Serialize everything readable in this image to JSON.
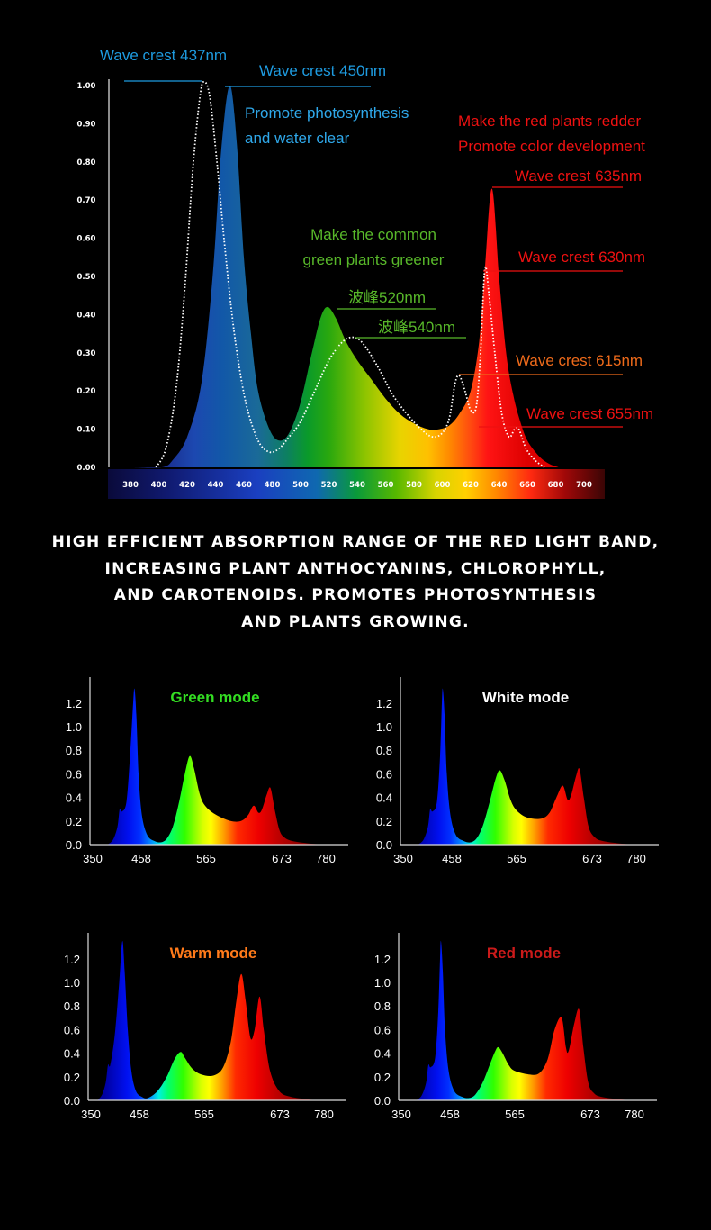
{
  "caption": [
    "HIGH EFFICIENT ABSORPTION RANGE OF THE RED LIGHT BAND,",
    "INCREASING PLANT ANTHOCYANINS, CHLOROPHYLL,",
    "AND CAROTENOIDS. PROMOTES PHOTOSYNTHESIS",
    "AND PLANTS GROWING."
  ],
  "chart_data": [
    {
      "type": "area",
      "xlabel": "",
      "ylabel": "",
      "x_ticks": [
        380,
        400,
        420,
        440,
        460,
        480,
        500,
        520,
        540,
        560,
        580,
        600,
        620,
        640,
        660,
        680,
        700
      ],
      "y_ticks": [
        "0.00",
        "0.10",
        "0.20",
        "0.30",
        "0.40",
        "0.50",
        "0.60",
        "0.70",
        "0.80",
        "0.90",
        "1.00"
      ],
      "xlim": [
        380,
        700
      ],
      "ylim": [
        0,
        1.0
      ],
      "grid": false,
      "series": [
        {
          "style": "filled-spectrum",
          "points": [
            [
              380,
              0
            ],
            [
              402,
              0
            ],
            [
              410,
              0.02
            ],
            [
              420,
              0.08
            ],
            [
              430,
              0.22
            ],
            [
              438,
              0.5
            ],
            [
              444,
              0.83
            ],
            [
              450,
              1.0
            ],
            [
              455,
              0.85
            ],
            [
              460,
              0.55
            ],
            [
              465,
              0.35
            ],
            [
              470,
              0.2
            ],
            [
              478,
              0.1
            ],
            [
              485,
              0.07
            ],
            [
              492,
              0.09
            ],
            [
              500,
              0.17
            ],
            [
              508,
              0.3
            ],
            [
              514,
              0.39
            ],
            [
              519,
              0.42
            ],
            [
              525,
              0.39
            ],
            [
              532,
              0.33
            ],
            [
              540,
              0.28
            ],
            [
              550,
              0.23
            ],
            [
              560,
              0.18
            ],
            [
              570,
              0.14
            ],
            [
              580,
              0.115
            ],
            [
              590,
              0.1
            ],
            [
              598,
              0.1
            ],
            [
              605,
              0.11
            ],
            [
              612,
              0.14
            ],
            [
              620,
              0.2
            ],
            [
              626,
              0.33
            ],
            [
              630,
              0.52
            ],
            [
              635,
              0.73
            ],
            [
              640,
              0.5
            ],
            [
              645,
              0.3
            ],
            [
              650,
              0.19
            ],
            [
              655,
              0.12
            ],
            [
              660,
              0.07
            ],
            [
              668,
              0.03
            ],
            [
              675,
              0.01
            ],
            [
              682,
              0
            ]
          ]
        },
        {
          "style": "dotted-white",
          "points": [
            [
              398,
              0
            ],
            [
              405,
              0.05
            ],
            [
              412,
              0.2
            ],
            [
              418,
              0.45
            ],
            [
              424,
              0.78
            ],
            [
              429,
              0.97
            ],
            [
              432,
              1.01
            ],
            [
              436,
              0.97
            ],
            [
              441,
              0.8
            ],
            [
              446,
              0.6
            ],
            [
              451,
              0.42
            ],
            [
              456,
              0.28
            ],
            [
              462,
              0.16
            ],
            [
              470,
              0.07
            ],
            [
              478,
              0.04
            ],
            [
              485,
              0.05
            ],
            [
              492,
              0.08
            ],
            [
              500,
              0.12
            ],
            [
              510,
              0.2
            ],
            [
              520,
              0.28
            ],
            [
              530,
              0.33
            ],
            [
              538,
              0.34
            ],
            [
              545,
              0.32
            ],
            [
              555,
              0.26
            ],
            [
              565,
              0.19
            ],
            [
              575,
              0.14
            ],
            [
              585,
              0.1
            ],
            [
              593,
              0.08
            ],
            [
              600,
              0.09
            ],
            [
              605,
              0.13
            ],
            [
              609,
              0.22
            ],
            [
              612,
              0.24
            ],
            [
              616,
              0.2
            ],
            [
              620,
              0.15
            ],
            [
              624,
              0.16
            ],
            [
              627,
              0.3
            ],
            [
              630,
              0.52
            ],
            [
              633,
              0.45
            ],
            [
              637,
              0.3
            ],
            [
              642,
              0.14
            ],
            [
              647,
              0.08
            ],
            [
              651,
              0.1
            ],
            [
              654,
              0.1
            ],
            [
              659,
              0.05
            ],
            [
              665,
              0.02
            ],
            [
              672,
              0
            ]
          ]
        }
      ],
      "annotations": [
        {
          "text": "Wave crest 437nm",
          "color": "#1e9be0"
        },
        {
          "text": "Wave crest 450nm",
          "color": "#1e9be0"
        },
        {
          "text": "Promote photosynthesis",
          "color": "#2fa8ea"
        },
        {
          "text": "and water clear",
          "color": "#2fa8ea"
        },
        {
          "text": "Make the red plants redder",
          "color": "#ee1111"
        },
        {
          "text": "Promote color development",
          "color": "#ee1111"
        },
        {
          "text": "Wave crest 635nm",
          "color": "#ee1111"
        },
        {
          "text": "Make the common",
          "color": "#58b82a"
        },
        {
          "text": "green plants greener",
          "color": "#58b82a"
        },
        {
          "text": "波峰520nm",
          "color": "#58b82a"
        },
        {
          "text": "波峰540nm",
          "color": "#58b82a"
        },
        {
          "text": "Wave crest 630nm",
          "color": "#ee1111"
        },
        {
          "text": "Wave crest 615nm",
          "color": "#ee6a1a"
        },
        {
          "text": "Wave crest 655nm",
          "color": "#ee1111"
        }
      ]
    },
    {
      "type": "area",
      "title": "Green mode",
      "title_color": "#33dd22",
      "x_ticks": [
        350,
        458,
        565,
        673,
        780
      ],
      "y_ticks": [
        "0.0",
        "0.2",
        "0.4",
        "0.6",
        "0.8",
        "1.0",
        "1.2"
      ],
      "ylim": [
        0,
        1.2
      ],
      "points": [
        [
          383,
          0
        ],
        [
          395,
          0.04
        ],
        [
          405,
          0.15
        ],
        [
          410,
          0.3
        ],
        [
          415,
          0.28
        ],
        [
          425,
          0.36
        ],
        [
          433,
          0.75
        ],
        [
          440,
          1.2
        ],
        [
          443,
          1.32
        ],
        [
          447,
          1.1
        ],
        [
          452,
          0.6
        ],
        [
          459,
          0.25
        ],
        [
          468,
          0.08
        ],
        [
          480,
          0.03
        ],
        [
          491,
          0.02
        ],
        [
          500,
          0.05
        ],
        [
          510,
          0.15
        ],
        [
          520,
          0.35
        ],
        [
          530,
          0.6
        ],
        [
          538,
          0.75
        ],
        [
          545,
          0.65
        ],
        [
          555,
          0.42
        ],
        [
          565,
          0.32
        ],
        [
          580,
          0.25
        ],
        [
          600,
          0.2
        ],
        [
          615,
          0.2
        ],
        [
          625,
          0.25
        ],
        [
          633,
          0.33
        ],
        [
          640,
          0.27
        ],
        [
          645,
          0.3
        ],
        [
          652,
          0.43
        ],
        [
          657,
          0.48
        ],
        [
          663,
          0.3
        ],
        [
          670,
          0.12
        ],
        [
          680,
          0.06
        ],
        [
          700,
          0.03
        ],
        [
          740,
          0.01
        ],
        [
          775,
          0
        ]
      ]
    },
    {
      "type": "area",
      "title": "White mode",
      "title_color": "#ffffff",
      "x_ticks": [
        350,
        458,
        565,
        673,
        780
      ],
      "y_ticks": [
        "0.0",
        "0.2",
        "0.4",
        "0.6",
        "0.8",
        "1.0",
        "1.2"
      ],
      "ylim": [
        0,
        1.2
      ],
      "points": [
        [
          383,
          0
        ],
        [
          395,
          0.04
        ],
        [
          405,
          0.15
        ],
        [
          410,
          0.3
        ],
        [
          415,
          0.28
        ],
        [
          425,
          0.36
        ],
        [
          432,
          0.75
        ],
        [
          436,
          1.2
        ],
        [
          438,
          1.32
        ],
        [
          442,
          1.1
        ],
        [
          447,
          0.6
        ],
        [
          455,
          0.25
        ],
        [
          465,
          0.08
        ],
        [
          478,
          0.03
        ],
        [
          490,
          0.02
        ],
        [
          500,
          0.06
        ],
        [
          510,
          0.17
        ],
        [
          520,
          0.35
        ],
        [
          530,
          0.55
        ],
        [
          537,
          0.63
        ],
        [
          545,
          0.55
        ],
        [
          555,
          0.38
        ],
        [
          565,
          0.29
        ],
        [
          580,
          0.23
        ],
        [
          600,
          0.22
        ],
        [
          612,
          0.27
        ],
        [
          622,
          0.4
        ],
        [
          631,
          0.5
        ],
        [
          638,
          0.38
        ],
        [
          643,
          0.42
        ],
        [
          650,
          0.58
        ],
        [
          655,
          0.64
        ],
        [
          661,
          0.4
        ],
        [
          668,
          0.15
        ],
        [
          680,
          0.06
        ],
        [
          700,
          0.03
        ],
        [
          740,
          0.01
        ],
        [
          775,
          0
        ]
      ]
    },
    {
      "type": "area",
      "title": "Warm mode",
      "title_color": "#ff7a1a",
      "x_ticks": [
        350,
        458,
        565,
        673,
        780
      ],
      "y_ticks": [
        "0.0",
        "0.2",
        "0.4",
        "0.6",
        "0.8",
        "1.0",
        "1.2"
      ],
      "ylim": [
        0,
        1.2
      ],
      "points": [
        [
          365,
          0
        ],
        [
          375,
          0.05
        ],
        [
          383,
          0.15
        ],
        [
          388,
          0.3
        ],
        [
          393,
          0.3
        ],
        [
          403,
          0.55
        ],
        [
          413,
          1.0
        ],
        [
          420,
          1.35
        ],
        [
          425,
          1.1
        ],
        [
          432,
          0.6
        ],
        [
          440,
          0.25
        ],
        [
          450,
          0.08
        ],
        [
          462,
          0.03
        ],
        [
          472,
          0.02
        ],
        [
          488,
          0.08
        ],
        [
          503,
          0.2
        ],
        [
          516,
          0.35
        ],
        [
          526,
          0.41
        ],
        [
          533,
          0.36
        ],
        [
          545,
          0.27
        ],
        [
          560,
          0.22
        ],
        [
          578,
          0.21
        ],
        [
          592,
          0.28
        ],
        [
          603,
          0.5
        ],
        [
          611,
          0.85
        ],
        [
          618,
          1.07
        ],
        [
          624,
          0.85
        ],
        [
          631,
          0.53
        ],
        [
          637,
          0.6
        ],
        [
          644,
          0.88
        ],
        [
          650,
          0.6
        ],
        [
          659,
          0.25
        ],
        [
          672,
          0.08
        ],
        [
          700,
          0.03
        ],
        [
          760,
          0
        ]
      ]
    },
    {
      "type": "area",
      "title": "Red mode",
      "title_color": "#cc1a1a",
      "x_ticks": [
        350,
        458,
        565,
        673,
        780
      ],
      "y_ticks": [
        "0.0",
        "0.2",
        "0.4",
        "0.6",
        "0.8",
        "1.0",
        "1.2"
      ],
      "ylim": [
        0,
        1.2
      ],
      "points": [
        [
          383,
          0
        ],
        [
          395,
          0.04
        ],
        [
          405,
          0.15
        ],
        [
          410,
          0.3
        ],
        [
          415,
          0.28
        ],
        [
          425,
          0.36
        ],
        [
          432,
          0.75
        ],
        [
          436,
          1.2
        ],
        [
          438,
          1.35
        ],
        [
          442,
          1.1
        ],
        [
          447,
          0.6
        ],
        [
          455,
          0.25
        ],
        [
          465,
          0.08
        ],
        [
          478,
          0.03
        ],
        [
          490,
          0.02
        ],
        [
          500,
          0.05
        ],
        [
          512,
          0.15
        ],
        [
          525,
          0.32
        ],
        [
          533,
          0.42
        ],
        [
          538,
          0.45
        ],
        [
          545,
          0.4
        ],
        [
          555,
          0.3
        ],
        [
          565,
          0.25
        ],
        [
          585,
          0.22
        ],
        [
          600,
          0.23
        ],
        [
          612,
          0.35
        ],
        [
          622,
          0.6
        ],
        [
          632,
          0.7
        ],
        [
          638,
          0.45
        ],
        [
          642,
          0.42
        ],
        [
          650,
          0.65
        ],
        [
          657,
          0.77
        ],
        [
          663,
          0.45
        ],
        [
          670,
          0.15
        ],
        [
          682,
          0.06
        ],
        [
          700,
          0.03
        ],
        [
          740,
          0.01
        ],
        [
          775,
          0
        ]
      ]
    }
  ]
}
